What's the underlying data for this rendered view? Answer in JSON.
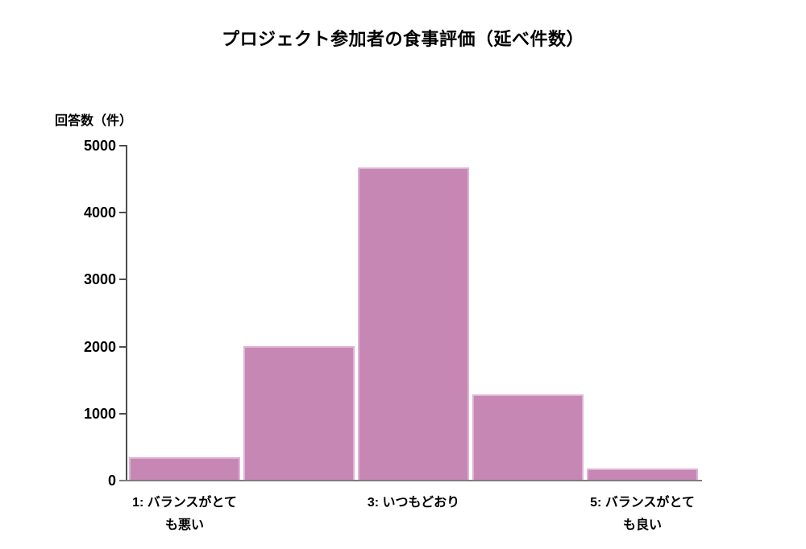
{
  "title": "プロジェクト参加者の食事評価（延べ件数）",
  "chart_data": {
    "type": "bar",
    "title": "プロジェクト参加者の食事評価（延べ件数）",
    "ylabel": "回答数（件）",
    "xlabel": "",
    "categories": [
      "1: バランスがとても悪い",
      "",
      "3: いつもどおり",
      "",
      "5: バランスがとても良い"
    ],
    "xtick_label_lines": [
      [
        "1: バランスがとて",
        "も悪い"
      ],
      [],
      [
        "3: いつもどおり"
      ],
      [],
      [
        "5: バランスがとて",
        "も良い"
      ]
    ],
    "values": [
      350,
      2010,
      4670,
      1285,
      180
    ],
    "ylim": [
      0,
      5000
    ],
    "yticks": [
      0,
      1000,
      2000,
      3000,
      4000,
      5000
    ],
    "grid": false,
    "legend": "none",
    "bar_color": "#c787b5",
    "bar_edge_color": "#dfb3d5",
    "axis_color": "#4d4d4d",
    "x_axis_color": "#7d7d7d",
    "text_color": "#000000"
  }
}
